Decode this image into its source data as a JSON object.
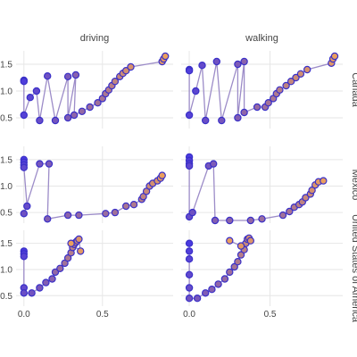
{
  "chart_data": {
    "type": "scatter",
    "connected": true,
    "grid": true,
    "x_ticks": [
      "0.0",
      "0.5"
    ],
    "y_ticks": [
      "0.5",
      "1.0",
      "1.5"
    ],
    "xlim": [
      -0.05,
      0.95
    ],
    "ylim": [
      0.3,
      1.75
    ],
    "columns": [
      "driving",
      "walking"
    ],
    "rows": [
      "Canada",
      "Mexico",
      "United States of America"
    ],
    "point_color_start": "#4a3ae0",
    "point_color_end": "#ea9f5e",
    "line_color": "#9c8cc8",
    "panels": [
      {
        "column": "driving",
        "row": "Canada",
        "points": [
          [
            0.0,
            1.2
          ],
          [
            0.0,
            1.18
          ],
          [
            0.0,
            0.55
          ],
          [
            0.04,
            0.88
          ],
          [
            0.08,
            1.0
          ],
          [
            0.1,
            0.45
          ],
          [
            0.15,
            1.28
          ],
          [
            0.2,
            0.45
          ],
          [
            0.28,
            1.27
          ],
          [
            0.28,
            0.5
          ],
          [
            0.33,
            1.3
          ],
          [
            0.32,
            0.55
          ],
          [
            0.37,
            0.62
          ],
          [
            0.42,
            0.7
          ],
          [
            0.47,
            0.78
          ],
          [
            0.5,
            0.86
          ],
          [
            0.52,
            0.95
          ],
          [
            0.54,
            1.02
          ],
          [
            0.56,
            1.1
          ],
          [
            0.58,
            1.18
          ],
          [
            0.61,
            1.27
          ],
          [
            0.63,
            1.33
          ],
          [
            0.65,
            1.38
          ],
          [
            0.68,
            1.45
          ],
          [
            0.88,
            1.55
          ],
          [
            0.89,
            1.6
          ],
          [
            0.9,
            1.65
          ]
        ]
      },
      {
        "column": "walking",
        "row": "Canada",
        "points": [
          [
            0.0,
            1.4
          ],
          [
            0.0,
            1.38
          ],
          [
            0.0,
            0.55
          ],
          [
            0.04,
            1.0
          ],
          [
            0.08,
            1.48
          ],
          [
            0.1,
            0.45
          ],
          [
            0.17,
            1.55
          ],
          [
            0.2,
            0.45
          ],
          [
            0.3,
            1.5
          ],
          [
            0.3,
            0.5
          ],
          [
            0.34,
            1.55
          ],
          [
            0.34,
            0.6
          ],
          [
            0.42,
            0.7
          ],
          [
            0.47,
            0.7
          ],
          [
            0.49,
            0.78
          ],
          [
            0.52,
            0.86
          ],
          [
            0.54,
            0.95
          ],
          [
            0.56,
            1.02
          ],
          [
            0.6,
            1.1
          ],
          [
            0.63,
            1.18
          ],
          [
            0.66,
            1.25
          ],
          [
            0.69,
            1.32
          ],
          [
            0.73,
            1.4
          ],
          [
            0.88,
            1.52
          ],
          [
            0.89,
            1.6
          ],
          [
            0.9,
            1.65
          ]
        ]
      },
      {
        "column": "driving",
        "row": "Mexico",
        "points": [
          [
            0.0,
            1.5
          ],
          [
            0.0,
            1.45
          ],
          [
            0.0,
            1.4
          ],
          [
            0.0,
            1.35
          ],
          [
            0.02,
            0.62
          ],
          [
            0.0,
            0.48
          ],
          [
            0.1,
            1.42
          ],
          [
            0.16,
            1.42
          ],
          [
            0.15,
            0.38
          ],
          [
            0.28,
            0.45
          ],
          [
            0.35,
            0.45
          ],
          [
            0.52,
            0.48
          ],
          [
            0.58,
            0.5
          ],
          [
            0.65,
            0.62
          ],
          [
            0.7,
            0.65
          ],
          [
            0.75,
            0.75
          ],
          [
            0.76,
            0.8
          ],
          [
            0.78,
            0.9
          ],
          [
            0.8,
            1.0
          ],
          [
            0.82,
            1.05
          ],
          [
            0.85,
            1.1
          ],
          [
            0.87,
            1.15
          ],
          [
            0.88,
            1.2
          ]
        ]
      },
      {
        "column": "walking",
        "row": "Mexico",
        "points": [
          [
            0.0,
            1.55
          ],
          [
            0.0,
            1.48
          ],
          [
            0.0,
            1.42
          ],
          [
            0.0,
            1.38
          ],
          [
            0.0,
            0.42
          ],
          [
            0.02,
            0.5
          ],
          [
            0.12,
            1.38
          ],
          [
            0.15,
            1.42
          ],
          [
            0.16,
            0.35
          ],
          [
            0.25,
            0.35
          ],
          [
            0.38,
            0.35
          ],
          [
            0.45,
            0.38
          ],
          [
            0.58,
            0.45
          ],
          [
            0.62,
            0.52
          ],
          [
            0.65,
            0.6
          ],
          [
            0.68,
            0.65
          ],
          [
            0.7,
            0.7
          ],
          [
            0.72,
            0.78
          ],
          [
            0.75,
            0.85
          ],
          [
            0.76,
            0.92
          ],
          [
            0.78,
            1.02
          ],
          [
            0.8,
            1.08
          ],
          [
            0.83,
            1.1
          ]
        ]
      },
      {
        "column": "driving",
        "row": "United States of America",
        "points": [
          [
            0.0,
            1.35
          ],
          [
            0.0,
            1.3
          ],
          [
            0.0,
            1.25
          ],
          [
            0.0,
            0.65
          ],
          [
            0.0,
            0.55
          ],
          [
            0.05,
            0.55
          ],
          [
            0.1,
            0.65
          ],
          [
            0.14,
            0.75
          ],
          [
            0.18,
            0.82
          ],
          [
            0.2,
            0.95
          ],
          [
            0.23,
            1.02
          ],
          [
            0.26,
            1.12
          ],
          [
            0.28,
            1.22
          ],
          [
            0.3,
            1.32
          ],
          [
            0.31,
            1.42
          ],
          [
            0.32,
            1.48
          ],
          [
            0.33,
            1.52
          ],
          [
            0.34,
            1.55
          ],
          [
            0.35,
            1.58
          ],
          [
            0.36,
            1.35
          ],
          [
            0.3,
            1.5
          ]
        ]
      },
      {
        "column": "walking",
        "row": "United States of America",
        "points": [
          [
            0.0,
            1.5
          ],
          [
            0.0,
            1.35
          ],
          [
            0.0,
            1.2
          ],
          [
            0.0,
            0.9
          ],
          [
            0.0,
            0.65
          ],
          [
            0.0,
            0.45
          ],
          [
            0.05,
            0.45
          ],
          [
            0.1,
            0.55
          ],
          [
            0.14,
            0.62
          ],
          [
            0.18,
            0.72
          ],
          [
            0.22,
            0.82
          ],
          [
            0.25,
            0.95
          ],
          [
            0.28,
            1.05
          ],
          [
            0.3,
            1.15
          ],
          [
            0.32,
            1.28
          ],
          [
            0.34,
            1.38
          ],
          [
            0.35,
            1.5
          ],
          [
            0.36,
            1.58
          ],
          [
            0.37,
            1.6
          ],
          [
            0.38,
            1.55
          ],
          [
            0.32,
            1.45
          ],
          [
            0.25,
            1.55
          ]
        ]
      }
    ]
  }
}
